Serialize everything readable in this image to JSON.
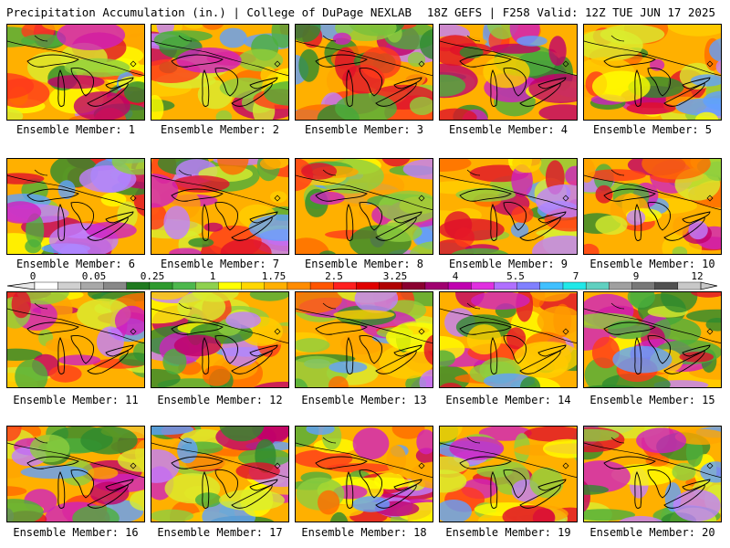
{
  "header": {
    "left": "Precipitation Accumulation (in.) | College of DuPage NEXLAB",
    "right": "18Z GEFS | F258 Valid: 12Z TUE JUN 17 2025"
  },
  "colorbar": {
    "tick_labels": [
      "0",
      "0.05",
      "0.25",
      "1",
      "1.75",
      "2.5",
      "3.25",
      "4",
      "5.5",
      "7",
      "9",
      "12"
    ],
    "colors": [
      "#ffffff",
      "#d0d0d0",
      "#a8a8a8",
      "#888888",
      "#1f7a1f",
      "#2e9a2e",
      "#4db84d",
      "#8fd14f",
      "#ffff00",
      "#ffd700",
      "#ffb000",
      "#ff8c00",
      "#ff5500",
      "#ff2020",
      "#e00000",
      "#b00000",
      "#8a0030",
      "#a00070",
      "#c000b0",
      "#e030e0",
      "#b070ff",
      "#8080ff",
      "#40c0ff",
      "#20e8e8",
      "#60d0c0",
      "#a0a0a0",
      "#787878",
      "#505050",
      "#c8c8c8"
    ]
  },
  "members": [
    {
      "label": "Ensemble Member: 1"
    },
    {
      "label": "Ensemble Member: 2"
    },
    {
      "label": "Ensemble Member: 3"
    },
    {
      "label": "Ensemble Member: 4"
    },
    {
      "label": "Ensemble Member: 5"
    },
    {
      "label": "Ensemble Member: 6"
    },
    {
      "label": "Ensemble Member: 7"
    },
    {
      "label": "Ensemble Member: 8"
    },
    {
      "label": "Ensemble Member: 9"
    },
    {
      "label": "Ensemble Member: 10"
    },
    {
      "label": "Ensemble Member: 11"
    },
    {
      "label": "Ensemble Member: 12"
    },
    {
      "label": "Ensemble Member: 13"
    },
    {
      "label": "Ensemble Member: 14"
    },
    {
      "label": "Ensemble Member: 15"
    },
    {
      "label": "Ensemble Member: 16"
    },
    {
      "label": "Ensemble Member: 17"
    },
    {
      "label": "Ensemble Member: 18"
    },
    {
      "label": "Ensemble Member: 19"
    },
    {
      "label": "Ensemble Member: 20"
    }
  ]
}
